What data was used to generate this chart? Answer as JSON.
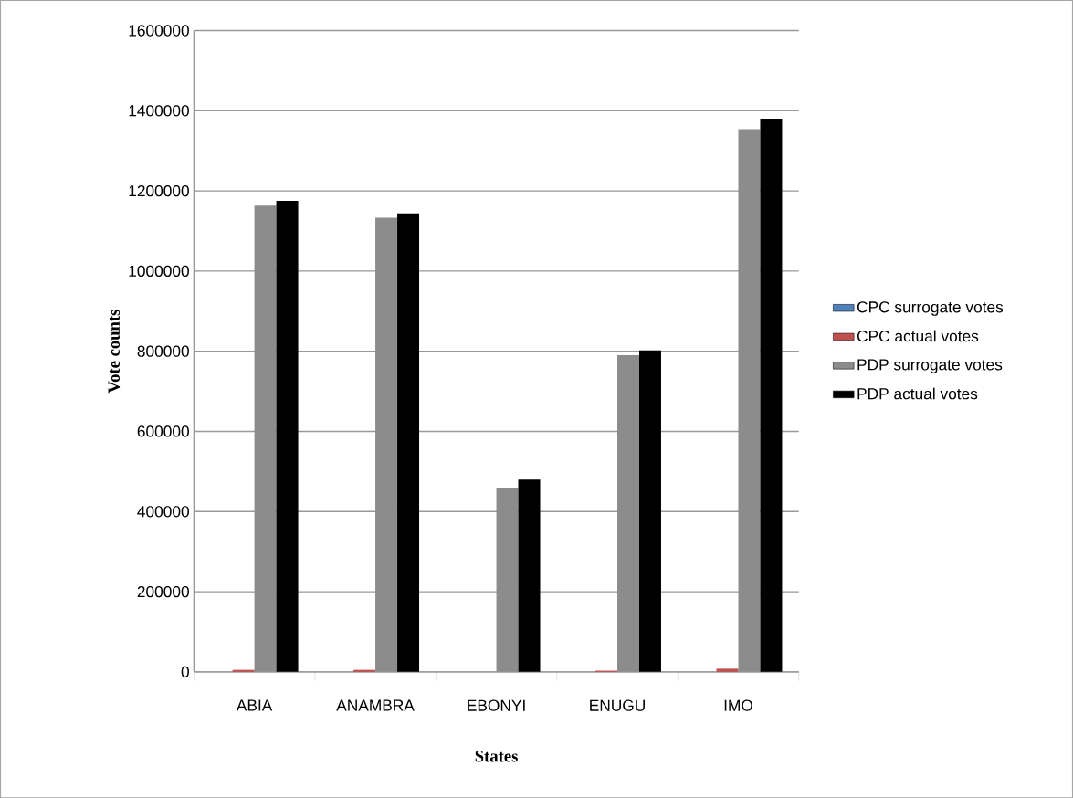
{
  "chart_data": {
    "type": "bar",
    "xlabel": "States",
    "ylabel": "Vote counts",
    "categories": [
      "ABIA",
      "ANAMBRA",
      "EBONYI",
      "ENUGU",
      "IMO"
    ],
    "series": [
      {
        "name": "CPC surrogate votes",
        "color": "#4f81bd",
        "values": [
          0,
          0,
          0,
          0,
          0
        ]
      },
      {
        "name": "CPC actual votes",
        "color": "#c0504d",
        "values": [
          5000,
          5000,
          0,
          3000,
          8000
        ]
      },
      {
        "name": "PDP surrogate votes",
        "color": "#8c8c8c",
        "values": [
          1163000,
          1133000,
          458000,
          790000,
          1354000
        ]
      },
      {
        "name": "PDP actual votes",
        "color": "#000000",
        "values": [
          1175000,
          1144000,
          480000,
          802000,
          1380000
        ]
      }
    ],
    "ylim": [
      0,
      1600000
    ],
    "yticks": [
      0,
      200000,
      400000,
      600000,
      800000,
      1000000,
      1200000,
      1400000,
      1600000
    ],
    "grid": "y",
    "legend": "right"
  }
}
